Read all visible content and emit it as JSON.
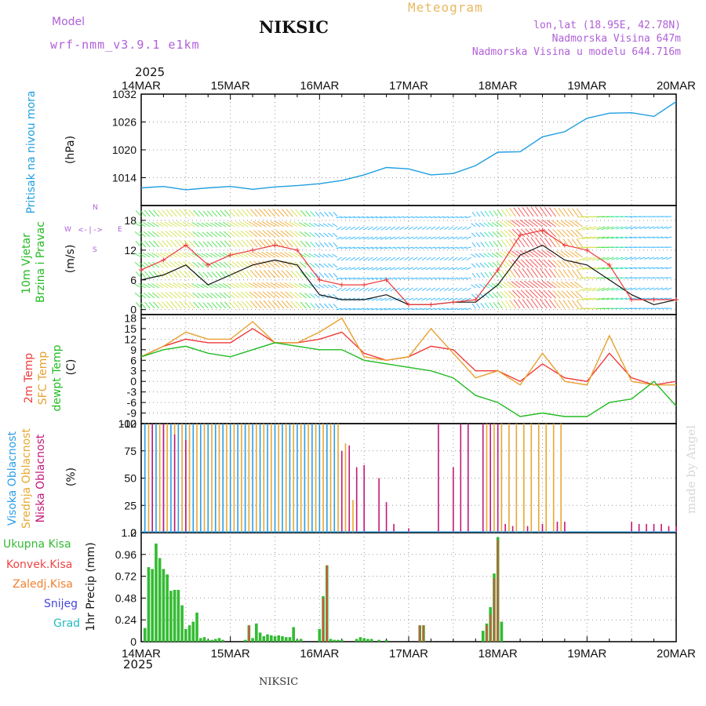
{
  "header": {
    "model_label": "Model",
    "model_name": "wrf-nmm_v3.9.1 e1km",
    "station": "NIKSIC",
    "meteogram": "Meteogram",
    "lonlat": "lon,lat (18.95E, 42.78N)",
    "altitude": "Nadmorska Visina 647m",
    "model_altitude": "Nadmorska Visina u modelu 644.716m",
    "credit": "made by Angel",
    "bottom_station": "NIKSIC"
  },
  "time_axis": {
    "year": "2025",
    "labels": [
      "14MAR",
      "15MAR",
      "16MAR",
      "17MAR",
      "18MAR",
      "19MAR",
      "20MAR"
    ]
  },
  "panels": {
    "pressure": {
      "name": "Pritisak na nivou mora",
      "unit": "(hPa)"
    },
    "wind": {
      "name1": "10m Vjetar",
      "name2": "Brzina i Pravac",
      "unit": "(m/s)",
      "compass": {
        "w": "W",
        "e": "E",
        "n": "N",
        "s": "S"
      }
    },
    "temp": {
      "l1": "2m Temp",
      "l2": "SFC Temp",
      "l3": "dewpt Temp",
      "unit": "(C)"
    },
    "cloud": {
      "l1": "Visoka Oblacnost",
      "l2": "Srednja Oblacnost",
      "l3": "Niska Oblacnost",
      "unit": "(%)"
    },
    "precip": {
      "name": "1hr Precip (mm)",
      "legend": [
        "Ukupna Kisa",
        "Konvek.Kisa",
        "Zaledj.Kisa",
        "Snijeg",
        "Grad"
      ]
    }
  },
  "colors": {
    "pressure": "#1e9ee0",
    "t2m": "#ef3a3a",
    "tsfc": "#e8a030",
    "dewpt": "#22bb22",
    "cloud_high": "#2c9ee8",
    "cloud_mid": "#e8a830",
    "cloud_low": "#c2187a",
    "rain": "#33bb33",
    "convective": "#ee4444",
    "freezing": "#f08030",
    "snow": "#4444dd",
    "hail": "#22bbbb",
    "grid": "#999999"
  },
  "chart_data": [
    {
      "type": "line",
      "name": "Pritisak na nivou mora",
      "x": [
        0,
        6,
        12,
        18,
        24,
        30,
        36,
        42,
        48,
        54,
        60,
        66,
        72,
        78,
        84,
        90,
        96,
        102,
        108,
        114,
        120,
        126,
        132,
        138,
        144
      ],
      "ylim": [
        1008,
        1032
      ],
      "yticks": [
        1014,
        1020,
        1026,
        1032
      ],
      "series": [
        {
          "name": "",
          "values": [
            1011.8,
            1012.1,
            1011.4,
            1011.8,
            1012.1,
            1011.5,
            1012.0,
            1012.3,
            1012.7,
            1013.4,
            1014.6,
            1016.2,
            1015.9,
            1014.6,
            1014.9,
            1016.6,
            1019.5,
            1019.6,
            1022.8,
            1023.9,
            1026.8,
            1027.9,
            1028.0,
            1027.2,
            1030.4
          ]
        }
      ]
    },
    {
      "type": "line",
      "name": "10m Vjetar Brzina i Pravac",
      "x": [
        0,
        6,
        12,
        18,
        24,
        30,
        36,
        42,
        48,
        54,
        60,
        66,
        72,
        78,
        84,
        90,
        96,
        102,
        108,
        114,
        120,
        126,
        132,
        138,
        144
      ],
      "ylim": [
        -1,
        21
      ],
      "yticks": [
        0,
        6,
        12,
        18
      ],
      "series": [
        {
          "name": "",
          "values": [
            6,
            7,
            9,
            5,
            7,
            9,
            10,
            9,
            3,
            2,
            2,
            3,
            1,
            1,
            1.5,
            1.5,
            5,
            11,
            13,
            10,
            9,
            6,
            3,
            1,
            2
          ]
        },
        {
          "name": "",
          "values": [
            8,
            10,
            13,
            9,
            11,
            12,
            13,
            12,
            6,
            5,
            5,
            6,
            1,
            1,
            1.5,
            2,
            8,
            15,
            16,
            13,
            12,
            9,
            2,
            2,
            2
          ]
        }
      ]
    },
    {
      "type": "line",
      "name": "Temperature",
      "x": [
        0,
        6,
        12,
        18,
        24,
        30,
        36,
        42,
        48,
        54,
        60,
        66,
        72,
        78,
        84,
        90,
        96,
        102,
        108,
        114,
        120,
        126,
        132,
        138,
        144
      ],
      "ylim": [
        -12,
        19
      ],
      "yticks": [
        -12,
        -9,
        -6,
        -3,
        0,
        3,
        6,
        9,
        12,
        15,
        18
      ],
      "series": [
        {
          "name": "2m Temp",
          "values": [
            7,
            10,
            12,
            11,
            11,
            15,
            11,
            11,
            12,
            14,
            8,
            6,
            7,
            10,
            9,
            3,
            3,
            0,
            5,
            1,
            0,
            8,
            1,
            -1,
            0
          ]
        },
        {
          "name": "SFC Temp",
          "values": [
            7,
            10,
            14,
            12,
            12,
            17,
            11,
            11,
            14,
            18,
            7,
            6,
            7,
            15,
            8,
            1,
            3,
            -1,
            8,
            0,
            -1,
            13,
            0,
            -1,
            -1
          ]
        },
        {
          "name": "dewpt Temp",
          "values": [
            7,
            9,
            10,
            8,
            7,
            9,
            11,
            10,
            9,
            9,
            6,
            5,
            4,
            3,
            1,
            -4,
            -6,
            -10,
            -9,
            -10,
            -10,
            -6,
            -5,
            0,
            -7
          ]
        }
      ]
    },
    {
      "type": "bar",
      "name": "Oblacnost",
      "ylim": [
        0,
        100
      ],
      "yticks": [
        0,
        25,
        50,
        75,
        100
      ],
      "series": [
        {
          "name": "Visoka Oblacnost",
          "x": [
            1,
            3,
            4,
            6,
            8,
            10,
            12,
            14,
            16,
            18,
            20,
            22,
            24,
            26,
            28,
            30,
            32,
            34,
            36,
            38,
            40,
            42,
            44,
            46,
            48,
            50,
            52
          ],
          "values": [
            100,
            100,
            100,
            100,
            100,
            100,
            100,
            100,
            100,
            100,
            100,
            100,
            100,
            100,
            100,
            100,
            100,
            100,
            100,
            100,
            100,
            100,
            100,
            100,
            100,
            100,
            100
          ]
        },
        {
          "name": "Srednja Oblacnost",
          "x": [
            2,
            5,
            7,
            9,
            11,
            13,
            15,
            17,
            19,
            21,
            23,
            25,
            27,
            29,
            31,
            33,
            35,
            37,
            39,
            41,
            43,
            45,
            47,
            49,
            51,
            53,
            55,
            57,
            93,
            95,
            97,
            99,
            101,
            103,
            105,
            107,
            109,
            111,
            113
          ],
          "values": [
            100,
            100,
            100,
            100,
            100,
            100,
            100,
            100,
            100,
            100,
            100,
            100,
            100,
            100,
            100,
            100,
            100,
            100,
            100,
            100,
            100,
            100,
            100,
            100,
            100,
            100,
            82,
            30,
            100,
            100,
            100,
            100,
            100,
            100,
            100,
            100,
            100,
            100,
            100
          ]
        },
        {
          "name": "Niska Oblacnost",
          "x": [
            3,
            6,
            9,
            12,
            54,
            56,
            58,
            60,
            64,
            66,
            68,
            72,
            80,
            84,
            86,
            88,
            92,
            94,
            96,
            98,
            100,
            104,
            108,
            112,
            114,
            132,
            134,
            136,
            138,
            140,
            142,
            144
          ],
          "values": [
            100,
            100,
            90,
            85,
            75,
            80,
            60,
            62,
            50,
            28,
            8,
            4,
            100,
            60,
            100,
            100,
            100,
            100,
            100,
            8,
            6,
            6,
            8,
            10,
            10,
            10,
            8,
            8,
            8,
            8,
            6,
            6
          ]
        }
      ]
    },
    {
      "type": "bar",
      "name": "1hr Precip (mm)",
      "ylim": [
        0,
        1.2
      ],
      "yticks": [
        0,
        0.24,
        0.48,
        0.72,
        0.96,
        1.2
      ],
      "series": [
        {
          "name": "Ukupna Kisa",
          "x": [
            1,
            2,
            3,
            4,
            5,
            6,
            7,
            8,
            9,
            10,
            11,
            12,
            13,
            14,
            15,
            16,
            17,
            18,
            19,
            20,
            21,
            22,
            28,
            29,
            30,
            31,
            32,
            33,
            34,
            35,
            36,
            37,
            38,
            39,
            40,
            41,
            42,
            43,
            48,
            49,
            50,
            51,
            52,
            53,
            54,
            58,
            59,
            60,
            61,
            62,
            64,
            66,
            75,
            76,
            92,
            93,
            94,
            95,
            96,
            97
          ],
          "values": [
            0.15,
            0.82,
            0.8,
            1.08,
            0.92,
            0.8,
            0.74,
            0.56,
            0.57,
            0.57,
            0.4,
            0.14,
            0.18,
            0.22,
            0.32,
            0.04,
            0.05,
            0.02,
            0.02,
            0.03,
            0.04,
            0.02,
            0.02,
            0.18,
            0.04,
            0.2,
            0.1,
            0.06,
            0.08,
            0.07,
            0.06,
            0.07,
            0.06,
            0.05,
            0.05,
            0.16,
            0.02,
            0.03,
            0.14,
            0.5,
            0.84,
            0.03,
            0.02,
            0.02,
            0.02,
            0.03,
            0.05,
            0.04,
            0.03,
            0.03,
            0.02,
            0.02,
            0.18,
            0.18,
            0.12,
            0.2,
            0.38,
            0.75,
            1.15,
            0.22
          ]
        },
        {
          "name": "Konvek.Kisa",
          "x": [
            29,
            49,
            50,
            75,
            76,
            93,
            94,
            95,
            96
          ],
          "values": [
            0.18,
            0.48,
            0.84,
            0.18,
            0.18,
            0.18,
            0.3,
            0.7,
            1.12
          ]
        }
      ]
    }
  ]
}
